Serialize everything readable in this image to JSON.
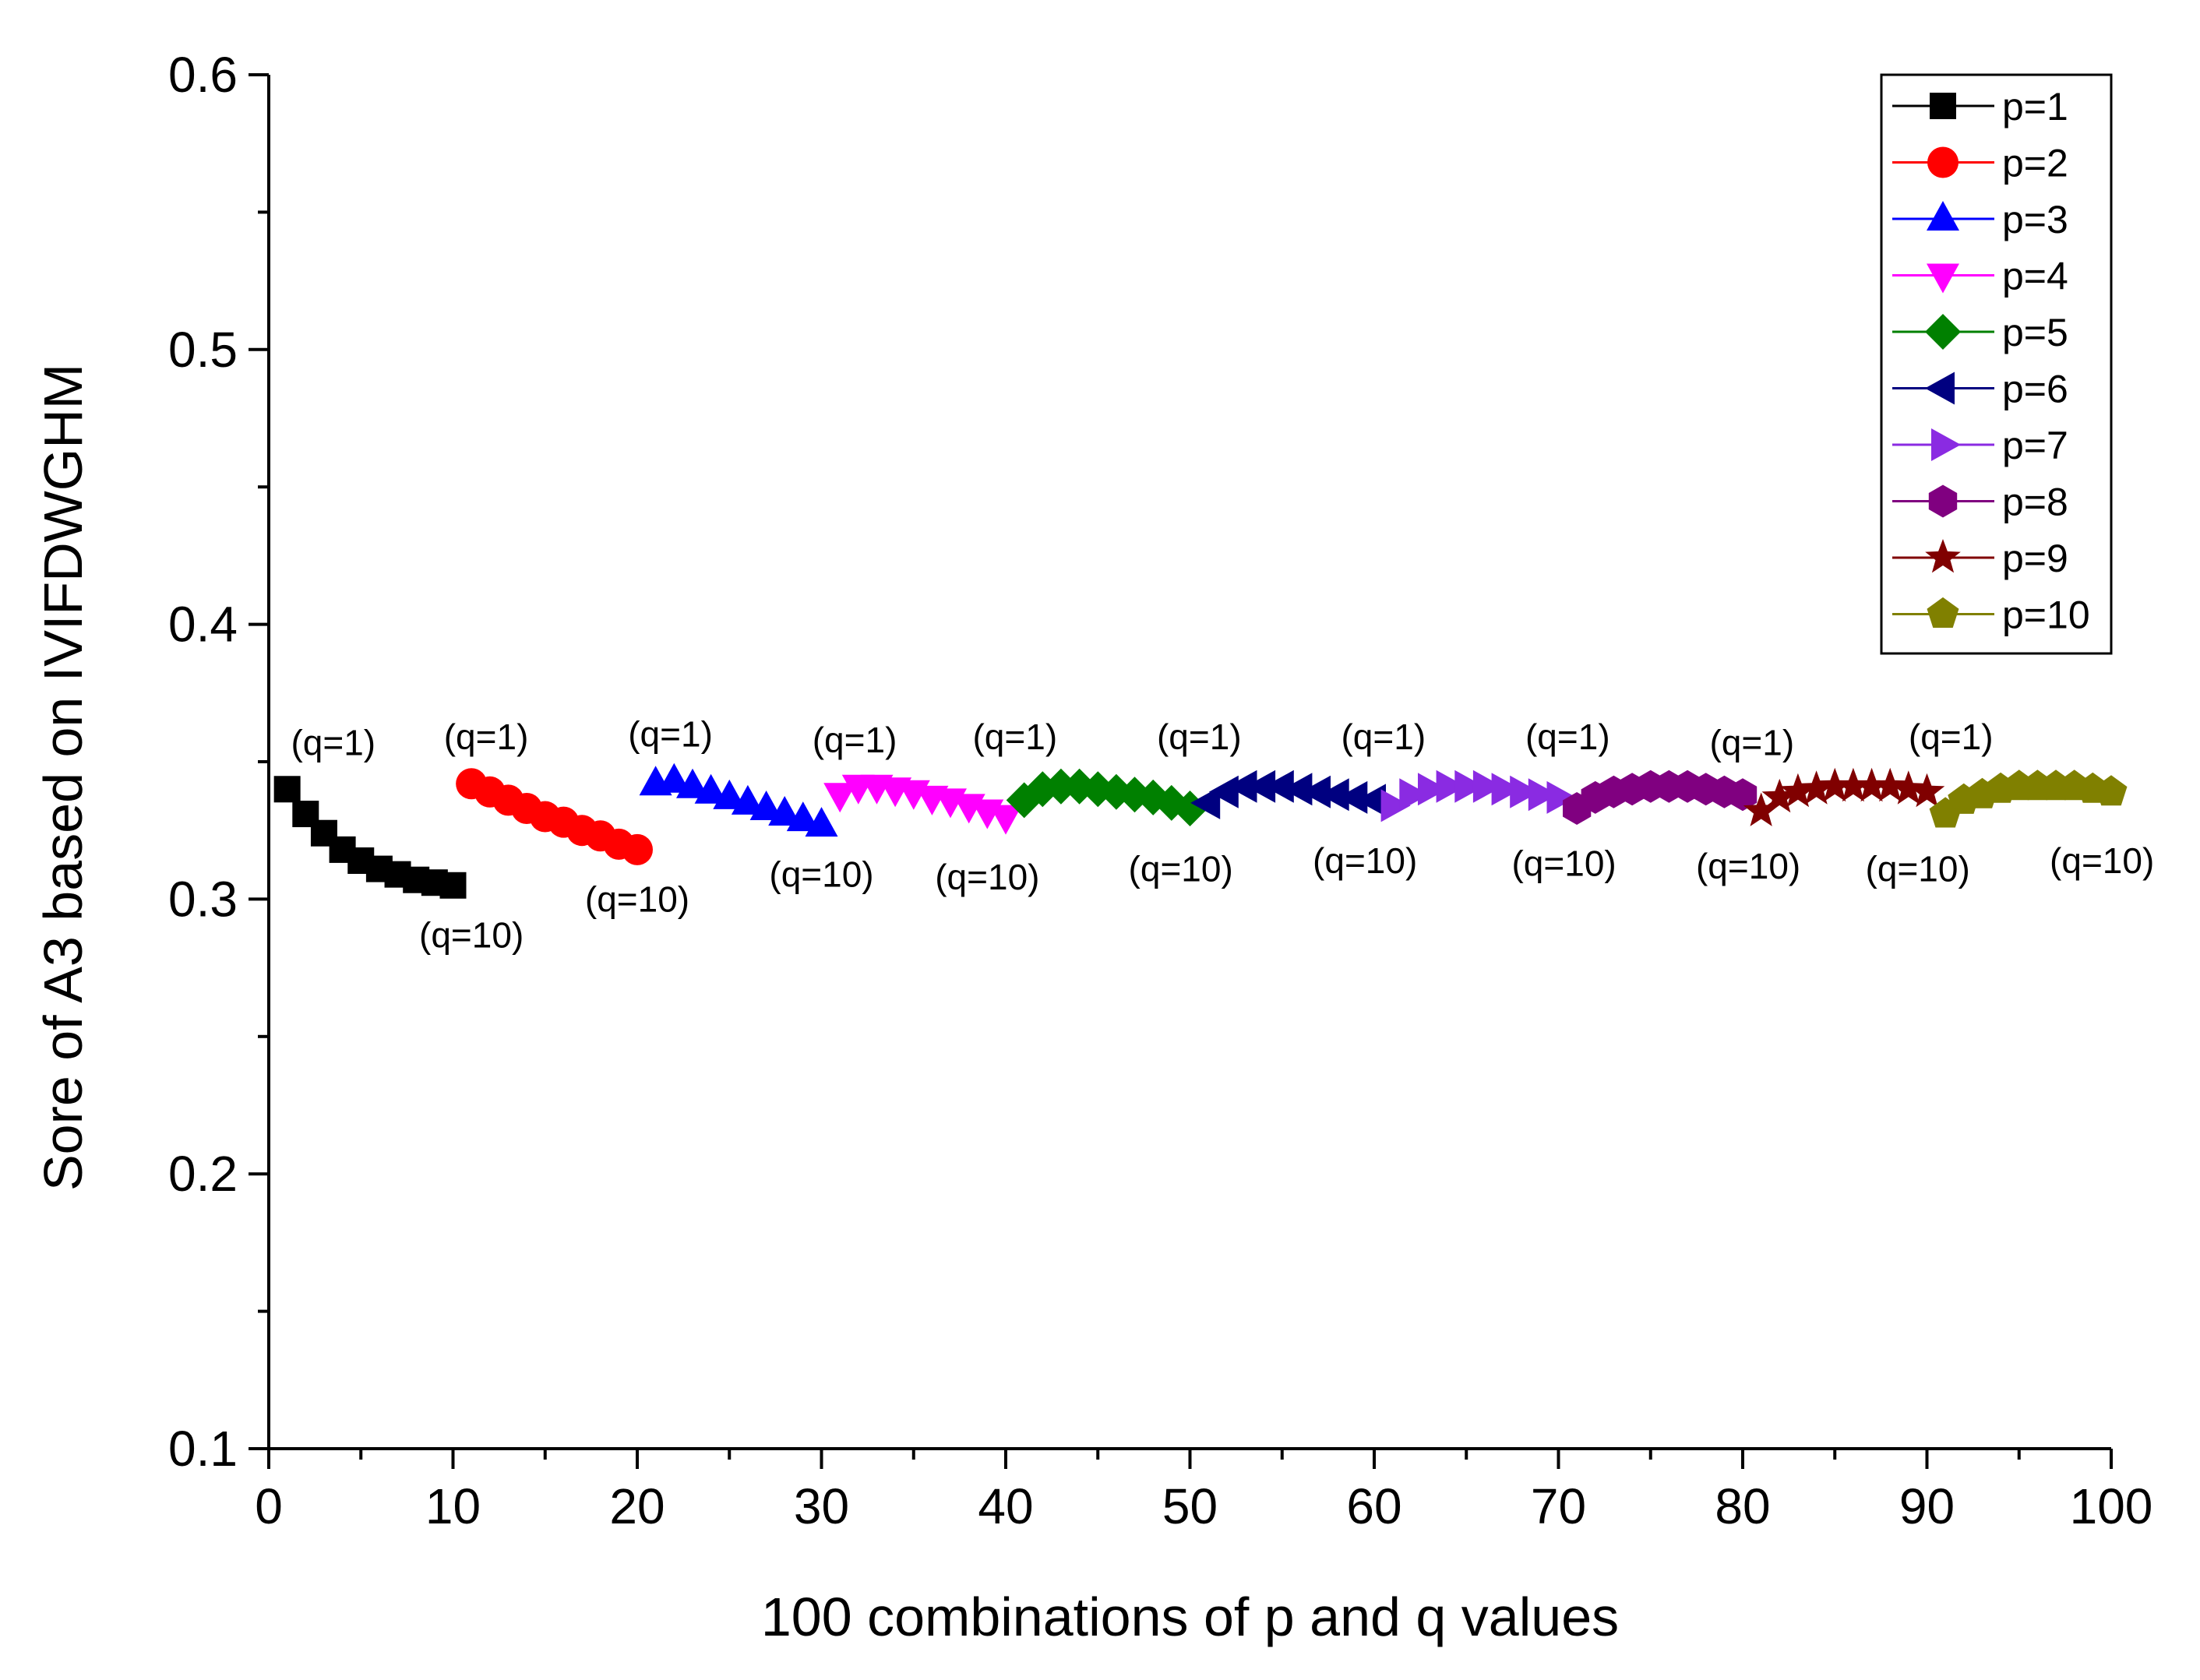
{
  "chart_data": {
    "type": "scatter",
    "title": "",
    "xlabel": "100 combinations of p and q values",
    "ylabel": "Sore of A3 based on IVIFDWGHM",
    "xlim": [
      0,
      100
    ],
    "ylim": [
      0.1,
      0.6
    ],
    "x_ticks": [
      "0",
      "10",
      "20",
      "30",
      "40",
      "50",
      "60",
      "70",
      "80",
      "90",
      "100"
    ],
    "y_ticks": [
      "0.1",
      "0.2",
      "0.3",
      "0.4",
      "0.5",
      "0.6"
    ],
    "legend_position": "top-right",
    "series": [
      {
        "name": "p=1",
        "marker": "square",
        "color": "#000000",
        "x": [
          1,
          2,
          3,
          4,
          5,
          6,
          7,
          8,
          9,
          10
        ],
        "y": [
          0.34,
          0.331,
          0.324,
          0.318,
          0.314,
          0.311,
          0.309,
          0.307,
          0.306,
          0.305
        ]
      },
      {
        "name": "p=2",
        "marker": "circle",
        "color": "#ff0000",
        "x": [
          11,
          12,
          13,
          14,
          15,
          16,
          17,
          18,
          19,
          20
        ],
        "y": [
          0.342,
          0.339,
          0.336,
          0.333,
          0.33,
          0.328,
          0.325,
          0.323,
          0.32,
          0.318
        ]
      },
      {
        "name": "p=3",
        "marker": "triangle-up",
        "color": "#0000ff",
        "x": [
          21,
          22,
          23,
          24,
          25,
          26,
          27,
          28,
          29,
          30
        ],
        "y": [
          0.342,
          0.343,
          0.341,
          0.339,
          0.337,
          0.335,
          0.333,
          0.331,
          0.329,
          0.327
        ]
      },
      {
        "name": "p=4",
        "marker": "triangle-down",
        "color": "#ff00ff",
        "x": [
          31,
          32,
          33,
          34,
          35,
          36,
          37,
          38,
          39,
          40
        ],
        "y": [
          0.338,
          0.341,
          0.341,
          0.34,
          0.339,
          0.337,
          0.336,
          0.334,
          0.332,
          0.33
        ]
      },
      {
        "name": "p=5",
        "marker": "diamond",
        "color": "#008000",
        "x": [
          41,
          42,
          43,
          44,
          45,
          46,
          47,
          48,
          49,
          50
        ],
        "y": [
          0.336,
          0.34,
          0.341,
          0.341,
          0.34,
          0.339,
          0.338,
          0.337,
          0.335,
          0.333
        ]
      },
      {
        "name": "p=6",
        "marker": "triangle-left",
        "color": "#000080",
        "x": [
          51,
          52,
          53,
          54,
          55,
          56,
          57,
          58,
          59,
          60
        ],
        "y": [
          0.335,
          0.339,
          0.341,
          0.341,
          0.341,
          0.34,
          0.339,
          0.338,
          0.337,
          0.336
        ]
      },
      {
        "name": "p=7",
        "marker": "triangle-right",
        "color": "#8a2be2",
        "x": [
          61,
          62,
          63,
          64,
          65,
          66,
          67,
          68,
          69,
          70
        ],
        "y": [
          0.334,
          0.338,
          0.34,
          0.341,
          0.341,
          0.341,
          0.34,
          0.339,
          0.338,
          0.337
        ]
      },
      {
        "name": "p=8",
        "marker": "hexagon",
        "color": "#800080",
        "x": [
          71,
          72,
          73,
          74,
          75,
          76,
          77,
          78,
          79,
          80
        ],
        "y": [
          0.333,
          0.337,
          0.339,
          0.34,
          0.341,
          0.341,
          0.341,
          0.34,
          0.339,
          0.338
        ]
      },
      {
        "name": "p=9",
        "marker": "star",
        "color": "#800000",
        "x": [
          81,
          82,
          83,
          84,
          85,
          86,
          87,
          88,
          89,
          90
        ],
        "y": [
          0.332,
          0.337,
          0.339,
          0.34,
          0.341,
          0.341,
          0.341,
          0.341,
          0.34,
          0.339
        ]
      },
      {
        "name": "p=10",
        "marker": "pentagon",
        "color": "#808000",
        "x": [
          91,
          92,
          93,
          94,
          95,
          96,
          97,
          98,
          99,
          100
        ],
        "y": [
          0.331,
          0.336,
          0.338,
          0.34,
          0.341,
          0.341,
          0.341,
          0.341,
          0.34,
          0.339
        ]
      }
    ],
    "annotations": [
      {
        "text": "(q=1)",
        "x": 3.5,
        "y": 0.357
      },
      {
        "text": "(q=10)",
        "x": 11,
        "y": 0.287
      },
      {
        "text": "(q=1)",
        "x": 11.8,
        "y": 0.359
      },
      {
        "text": "(q=10)",
        "x": 20,
        "y": 0.3
      },
      {
        "text": "(q=1)",
        "x": 21.8,
        "y": 0.36
      },
      {
        "text": "(q=10)",
        "x": 30,
        "y": 0.309
      },
      {
        "text": "(q=1)",
        "x": 31.8,
        "y": 0.358
      },
      {
        "text": "(q=10)",
        "x": 39,
        "y": 0.308
      },
      {
        "text": "(q=1)",
        "x": 40.5,
        "y": 0.359
      },
      {
        "text": "(q=10)",
        "x": 49.5,
        "y": 0.311
      },
      {
        "text": "(q=1)",
        "x": 50.5,
        "y": 0.359
      },
      {
        "text": "(q=10)",
        "x": 59.5,
        "y": 0.314
      },
      {
        "text": "(q=1)",
        "x": 60.5,
        "y": 0.359
      },
      {
        "text": "(q=10)",
        "x": 70.3,
        "y": 0.313
      },
      {
        "text": "(q=1)",
        "x": 70.5,
        "y": 0.359
      },
      {
        "text": "(q=10)",
        "x": 80.3,
        "y": 0.312
      },
      {
        "text": "(q=1)",
        "x": 80.5,
        "y": 0.357
      },
      {
        "text": "(q=10)",
        "x": 89.5,
        "y": 0.311
      },
      {
        "text": "(q=1)",
        "x": 91.3,
        "y": 0.359
      },
      {
        "text": "(q=10)",
        "x": 99.5,
        "y": 0.314
      }
    ]
  }
}
